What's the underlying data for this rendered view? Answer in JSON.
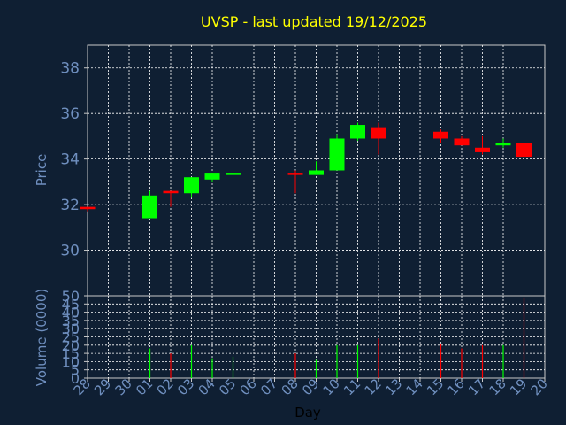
{
  "chart_data": {
    "type": "candlestick",
    "title": "UVSP - last updated 19/12/2025",
    "xlabel": "Day",
    "price_panel": {
      "ylabel": "Price",
      "ylim": [
        28,
        39
      ],
      "yticks": [
        30,
        32,
        34,
        36,
        38
      ]
    },
    "volume_panel": {
      "ylabel": "Volume (0000)",
      "ylim": [
        0,
        50
      ],
      "yticks": [
        0,
        5,
        10,
        15,
        20,
        25,
        30,
        35,
        40,
        45,
        50
      ]
    },
    "x_ticks": [
      "28",
      "29",
      "30",
      "01",
      "02",
      "03",
      "04",
      "05",
      "06",
      "07",
      "08",
      "09",
      "10",
      "11",
      "12",
      "13",
      "14",
      "15",
      "16",
      "17",
      "18",
      "19",
      "20"
    ],
    "candles": [
      {
        "day": "28",
        "open": 31.9,
        "high": 31.9,
        "low": 31.7,
        "close": 31.8,
        "volume": 0
      },
      {
        "day": "01",
        "open": 31.4,
        "high": 32.6,
        "low": 31.4,
        "close": 32.4,
        "volume": 18
      },
      {
        "day": "02",
        "open": 32.6,
        "high": 32.6,
        "low": 31.9,
        "close": 32.5,
        "volume": 15
      },
      {
        "day": "03",
        "open": 32.5,
        "high": 33.2,
        "low": 32.3,
        "close": 33.2,
        "volume": 20
      },
      {
        "day": "04",
        "open": 33.1,
        "high": 33.4,
        "low": 33.0,
        "close": 33.4,
        "volume": 12
      },
      {
        "day": "05",
        "open": 33.3,
        "high": 33.5,
        "low": 33.1,
        "close": 33.4,
        "volume": 13
      },
      {
        "day": "08",
        "open": 33.4,
        "high": 33.5,
        "low": 32.5,
        "close": 33.3,
        "volume": 15
      },
      {
        "day": "09",
        "open": 33.3,
        "high": 33.9,
        "low": 33.3,
        "close": 33.5,
        "volume": 11
      },
      {
        "day": "10",
        "open": 33.5,
        "high": 35.1,
        "low": 33.5,
        "close": 34.9,
        "volume": 20
      },
      {
        "day": "11",
        "open": 34.9,
        "high": 35.6,
        "low": 34.8,
        "close": 35.5,
        "volume": 20
      },
      {
        "day": "12",
        "open": 35.4,
        "high": 35.6,
        "low": 34.2,
        "close": 34.9,
        "volume": 24
      },
      {
        "day": "15",
        "open": 35.2,
        "high": 35.3,
        "low": 34.7,
        "close": 34.9,
        "volume": 21
      },
      {
        "day": "16",
        "open": 34.9,
        "high": 35.0,
        "low": 34.6,
        "close": 34.6,
        "volume": 18
      },
      {
        "day": "17",
        "open": 34.5,
        "high": 35.0,
        "low": 34.2,
        "close": 34.3,
        "volume": 20
      },
      {
        "day": "18",
        "open": 34.6,
        "high": 34.9,
        "low": 34.5,
        "close": 34.7,
        "volume": 20
      },
      {
        "day": "19",
        "open": 34.7,
        "high": 34.9,
        "low": 33.9,
        "close": 34.1,
        "volume": 49
      }
    ]
  }
}
